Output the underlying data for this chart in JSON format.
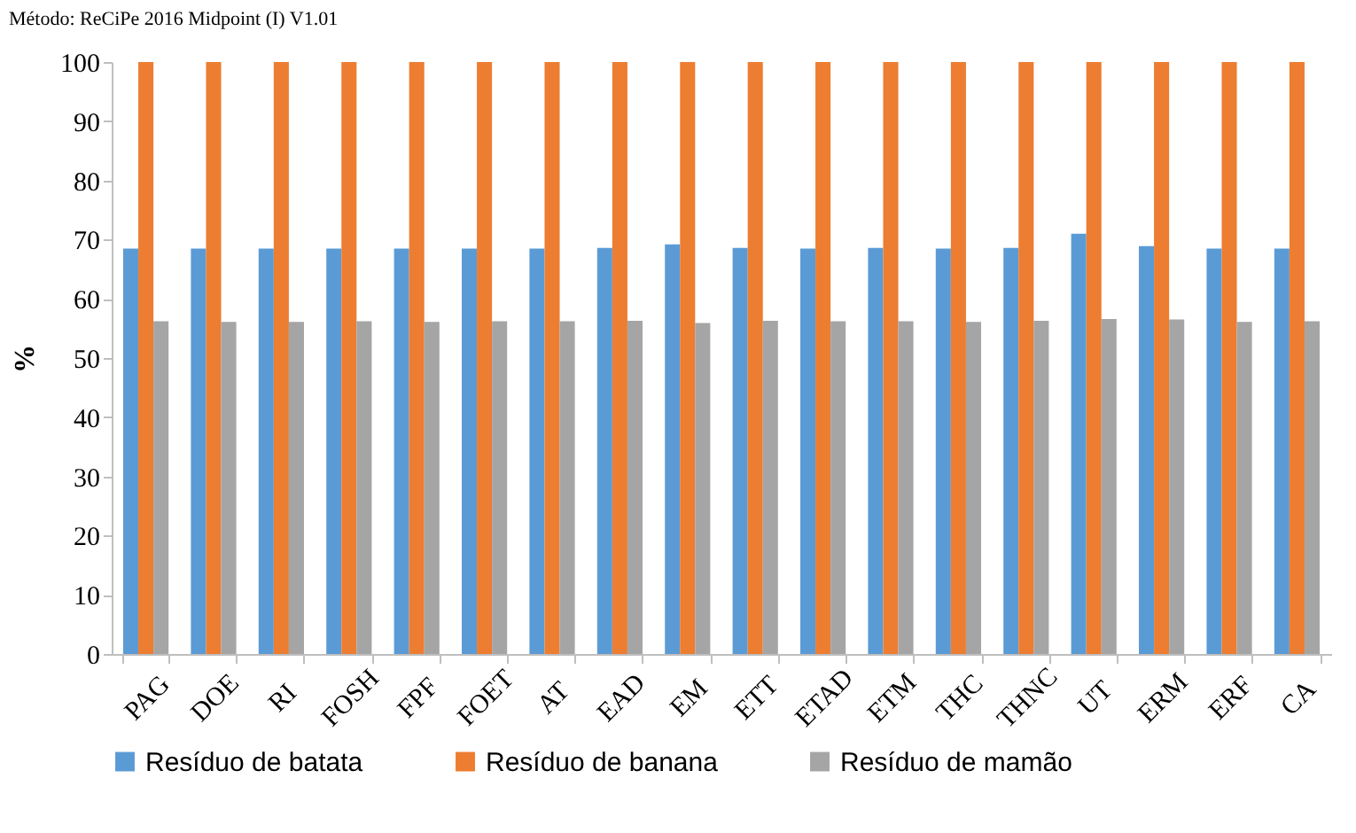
{
  "chart_data": {
    "type": "bar",
    "title": "Método: ReCiPe 2016 Midpoint (I) V1.01",
    "ylabel": "%",
    "categories": [
      "PAG",
      "DOE",
      "RI",
      "FOSH",
      "FPF",
      "FOET",
      "AT",
      "EAD",
      "EM",
      "ETT",
      "ETAD",
      "ETM",
      "THC",
      "THNC",
      "UT",
      "ERM",
      "ERF",
      "CA"
    ],
    "series": [
      {
        "name": "Resíduo de batata",
        "color": "#5b9bd5",
        "values": [
          68.5,
          68.5,
          68.5,
          68.5,
          68.5,
          68.5,
          68.5,
          68.6,
          69.2,
          68.6,
          68.5,
          68.6,
          68.5,
          68.6,
          71,
          68.9,
          68.5,
          68.5
        ]
      },
      {
        "name": "Resíduo de banana",
        "color": "#ed7d31",
        "values": [
          100,
          100,
          100,
          100,
          100,
          100,
          100,
          100,
          100,
          100,
          100,
          100,
          100,
          100,
          100,
          100,
          100,
          100
        ]
      },
      {
        "name": "Resíduo de mamão",
        "color": "#a5a5a5",
        "values": [
          56.2,
          56.1,
          56.1,
          56.2,
          56.1,
          56.2,
          56.2,
          56.3,
          55.9,
          56.3,
          56.2,
          56.2,
          56.1,
          56.3,
          56.6,
          56.5,
          56.1,
          56.2
        ]
      }
    ],
    "ylim": [
      0,
      100
    ],
    "yticks": [
      0,
      10,
      20,
      30,
      40,
      50,
      60,
      70,
      80,
      90,
      100
    ],
    "grid": false,
    "legend": "bottom"
  }
}
